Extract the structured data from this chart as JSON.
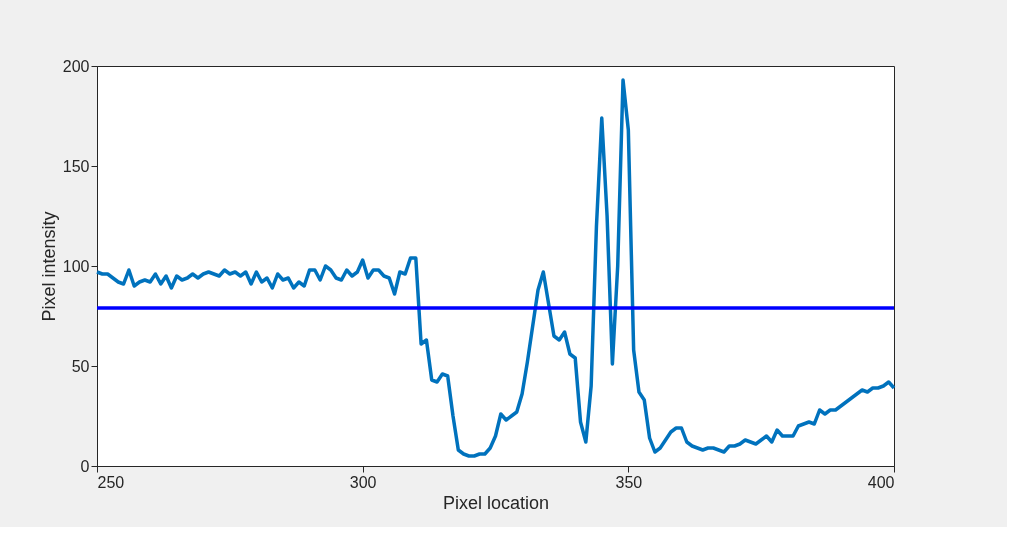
{
  "chart_data": {
    "type": "line",
    "xlabel": "Pixel location",
    "ylabel": "Pixel intensity",
    "xlim": [
      250,
      400
    ],
    "ylim": [
      0,
      200
    ],
    "xticks": [
      250,
      300,
      350,
      400
    ],
    "yticks": [
      0,
      50,
      100,
      150,
      200
    ],
    "grid": false,
    "marker": "none",
    "line_style": "solid",
    "x": [
      250,
      251,
      252,
      253,
      254,
      255,
      256,
      257,
      258,
      259,
      260,
      261,
      262,
      263,
      264,
      265,
      266,
      267,
      268,
      269,
      270,
      271,
      272,
      273,
      274,
      275,
      276,
      277,
      278,
      279,
      280,
      281,
      282,
      283,
      284,
      285,
      286,
      287,
      288,
      289,
      290,
      291,
      292,
      293,
      294,
      295,
      296,
      297,
      298,
      299,
      300,
      301,
      302,
      303,
      304,
      305,
      306,
      307,
      308,
      309,
      310,
      311,
      312,
      313,
      314,
      315,
      316,
      317,
      318,
      319,
      320,
      321,
      322,
      323,
      324,
      325,
      326,
      327,
      328,
      329,
      330,
      331,
      332,
      333,
      334,
      335,
      336,
      337,
      338,
      339,
      340,
      341,
      342,
      343,
      344,
      345,
      346,
      347,
      348,
      349,
      350,
      351,
      352,
      353,
      354,
      355,
      356,
      357,
      358,
      359,
      360,
      361,
      362,
      363,
      364,
      365,
      366,
      367,
      368,
      369,
      370,
      371,
      372,
      373,
      374,
      375,
      376,
      377,
      378,
      379,
      380,
      381,
      382,
      383,
      384,
      385,
      386,
      387,
      388,
      389,
      390,
      391,
      392,
      393,
      394,
      395,
      396,
      397,
      398,
      399,
      400
    ],
    "series": [
      {
        "color": "#0072bd",
        "values": [
          97,
          96,
          96,
          94,
          92,
          91,
          98,
          90,
          92,
          93,
          92,
          96,
          91,
          95,
          89,
          95,
          93,
          94,
          96,
          94,
          96,
          97,
          96,
          95,
          98,
          96,
          97,
          95,
          97,
          91,
          97,
          92,
          94,
          89,
          96,
          93,
          94,
          89,
          92,
          90,
          98,
          98,
          93,
          100,
          98,
          94,
          93,
          98,
          95,
          97,
          103,
          94,
          98,
          98,
          95,
          94,
          86,
          97,
          96,
          104,
          104,
          61,
          63,
          43,
          42,
          46,
          45,
          25,
          8,
          6,
          5,
          5,
          6,
          6,
          9,
          15,
          26,
          23,
          25,
          27,
          36,
          52,
          70,
          88,
          97,
          81,
          65,
          63,
          67,
          56,
          54,
          22,
          12,
          40,
          120,
          174,
          125,
          51,
          100,
          193,
          168,
          58,
          37,
          33,
          14,
          7,
          9,
          13,
          17,
          19,
          19,
          12,
          10,
          9,
          8,
          9,
          9,
          8,
          7,
          10,
          10,
          11,
          13,
          12,
          11,
          13,
          15,
          12,
          18,
          15,
          15,
          15,
          20,
          21,
          22,
          21,
          28,
          26,
          28,
          28,
          30,
          32,
          34,
          36,
          38,
          37,
          39,
          39,
          40,
          42,
          39
        ]
      }
    ],
    "ref_lines": [
      {
        "axis": "y",
        "value": 79,
        "color": "#0000ff",
        "line_style": "solid"
      }
    ]
  }
}
